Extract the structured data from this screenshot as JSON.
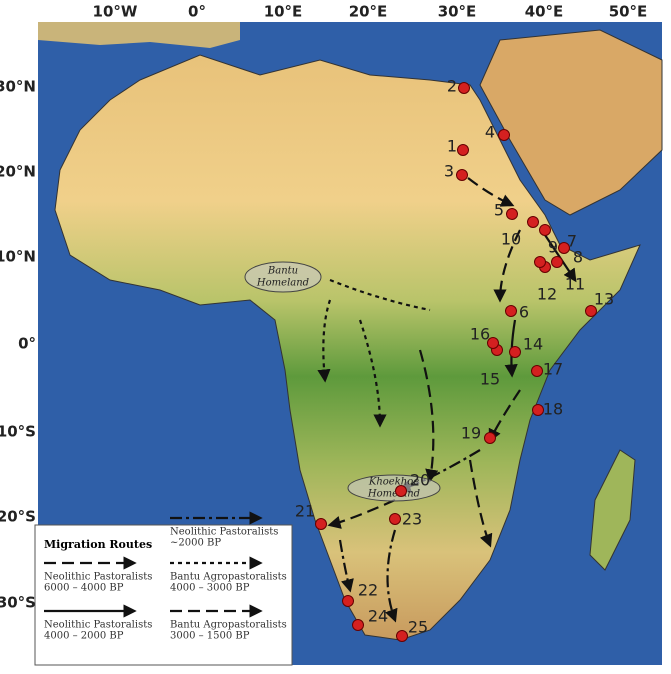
{
  "map": {
    "lon_labels": [
      "10°W",
      "0°",
      "10°E",
      "20°E",
      "30°E",
      "40°E",
      "50°E"
    ],
    "lat_labels": [
      "30°N",
      "20°N",
      "10°N",
      "0°",
      "10°S",
      "20°S",
      "30°S"
    ],
    "sites": [
      "1",
      "2",
      "3",
      "4",
      "5",
      "6",
      "7",
      "8",
      "9",
      "10",
      "11",
      "12",
      "13",
      "14",
      "15",
      "16",
      "17",
      "18",
      "19",
      "20",
      "21",
      "22",
      "23",
      "24",
      "25"
    ],
    "regions": [
      {
        "lines": [
          "Bantu",
          "Homeland"
        ]
      },
      {
        "lines": [
          "Khoekhoe",
          "Homeland"
        ]
      }
    ]
  },
  "legend": {
    "title": "Migration Routes",
    "entries": [
      {
        "name": "Neolithic Pastoralists",
        "period": "6000 – 4000 BP"
      },
      {
        "name": "Neolithic Pastoralists",
        "period": "4000 – 2000 BP"
      },
      {
        "name": "Neolithic Pastoralists",
        "period": "~2000 BP"
      },
      {
        "name": "Bantu Agropastoralists",
        "period": "4000 – 3000 BP"
      },
      {
        "name": "Bantu Agropastoralists",
        "period": "3000 – 1500 BP"
      }
    ]
  }
}
